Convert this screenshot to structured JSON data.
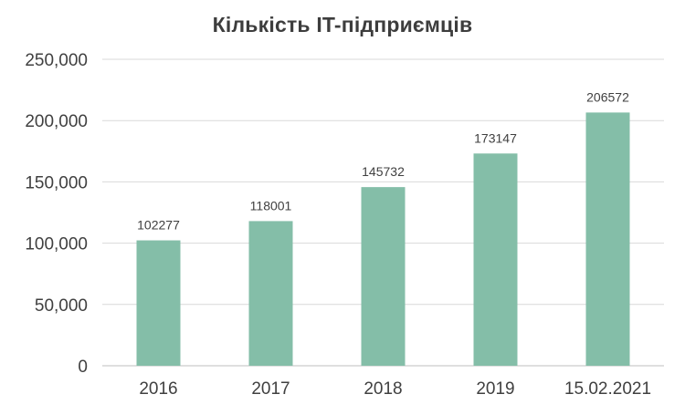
{
  "chart_data": {
    "type": "bar",
    "title": "Кількість IT-підприємців",
    "categories": [
      "2016",
      "2017",
      "2018",
      "2019",
      "15.02.2021"
    ],
    "values": [
      102277,
      118001,
      145732,
      173147,
      206572
    ],
    "data_labels": [
      "102277",
      "118001",
      "145732",
      "173147",
      "206572"
    ],
    "y_ticks": [
      {
        "value": 0,
        "label": "0"
      },
      {
        "value": 50000,
        "label": "50,000"
      },
      {
        "value": 100000,
        "label": "100,000"
      },
      {
        "value": 150000,
        "label": "150,000"
      },
      {
        "value": 200000,
        "label": "200,000"
      },
      {
        "value": 250000,
        "label": "250,000"
      }
    ],
    "ylim": [
      0,
      250000
    ],
    "xlabel": "",
    "ylabel": "",
    "grid": true,
    "legend": "none",
    "colors": {
      "bar": "#84bea8",
      "grid": "#d9d9d9",
      "axis": "#bfbfbf",
      "text": "#404040",
      "title": "#3d3d3d"
    }
  }
}
